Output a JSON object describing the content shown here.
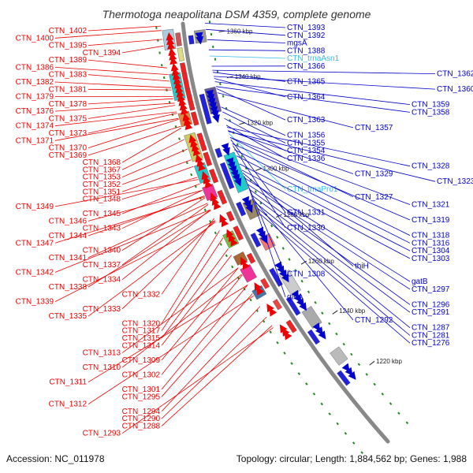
{
  "title": "Thermotoga neapolitana DSM 4359, complete genome",
  "accession": "Accession: NC_011978",
  "summary": "Topology: circular; Length: 1,884,562 bp; Genes: 1,988",
  "colors": {
    "forward": "#ee0000",
    "reverse": "#0000cc",
    "rna": "#33bbee",
    "backbone": "#888888",
    "tick": "#228822"
  },
  "scale_ticks": [
    {
      "label": "1360 kbp",
      "frac": 0.03
    },
    {
      "label": "1340 kbp",
      "frac": 0.145
    },
    {
      "label": "1320 kbp",
      "frac": 0.262
    },
    {
      "label": "1300 kbp",
      "frac": 0.378
    },
    {
      "label": "1280 kbp",
      "frac": 0.495
    },
    {
      "label": "1260 kbp",
      "frac": 0.613
    },
    {
      "label": "1240 kbp",
      "frac": 0.738
    },
    {
      "label": "1220 kbp",
      "frac": 0.866
    }
  ],
  "left_labels": [
    {
      "text": "CTN_1402",
      "row": 1,
      "t": 0.0
    },
    {
      "text": "CTN_1400",
      "row": 0,
      "t": 0.01
    },
    {
      "text": "CTN_1395",
      "row": 1,
      "t": 0.03
    },
    {
      "text": "CTN_1394",
      "row": 2,
      "t": 0.045
    },
    {
      "text": "CTN_1389",
      "row": 1,
      "t": 0.095
    },
    {
      "text": "CTN_1386",
      "row": 0,
      "t": 0.11
    },
    {
      "text": "CTN_1383",
      "row": 1,
      "t": 0.125
    },
    {
      "text": "CTN_1382",
      "row": 0,
      "t": 0.14
    },
    {
      "text": "CTN_1381",
      "row": 1,
      "t": 0.145
    },
    {
      "text": "CTN_1379",
      "row": 0,
      "t": 0.16
    },
    {
      "text": "CTN_1378",
      "row": 1,
      "t": 0.165
    },
    {
      "text": "CTN_1376",
      "row": 0,
      "t": 0.175
    },
    {
      "text": "CTN_1375",
      "row": 1,
      "t": 0.18
    },
    {
      "text": "CTN_1374",
      "row": 0,
      "t": 0.195
    },
    {
      "text": "CTN_1373",
      "row": 1,
      "t": 0.198
    },
    {
      "text": "CTN_1371",
      "row": 0,
      "t": 0.21
    },
    {
      "text": "CTN_1370",
      "row": 1,
      "t": 0.212
    },
    {
      "text": "CTN_1369",
      "row": 1,
      "t": 0.228
    },
    {
      "text": "CTN_1368",
      "row": 2,
      "t": 0.232
    },
    {
      "text": "CTN_1367",
      "row": 2,
      "t": 0.258
    },
    {
      "text": "CTN_1353",
      "row": 2,
      "t": 0.28
    },
    {
      "text": "CTN_1352",
      "row": 2,
      "t": 0.305
    },
    {
      "text": "CTN_1351",
      "row": 2,
      "t": 0.32
    },
    {
      "text": "CTN_1348",
      "row": 2,
      "t": 0.345
    },
    {
      "text": "CTN_1349",
      "row": 0,
      "t": 0.35
    },
    {
      "text": "CTN_1345",
      "row": 2,
      "t": 0.36
    },
    {
      "text": "CTN_1346",
      "row": 1,
      "t": 0.375
    },
    {
      "text": "CTN_1343",
      "row": 2,
      "t": 0.375
    },
    {
      "text": "CTN_1347",
      "row": 0,
      "t": 0.39
    },
    {
      "text": "CTN_1344",
      "row": 1,
      "t": 0.388
    },
    {
      "text": "CTN_1340",
      "row": 2,
      "t": 0.392
    },
    {
      "text": "CTN_1341",
      "row": 1,
      "t": 0.405
    },
    {
      "text": "CTN_1337",
      "row": 2,
      "t": 0.408
    },
    {
      "text": "CTN_1342",
      "row": 0,
      "t": 0.42
    },
    {
      "text": "CTN_1338",
      "row": 1,
      "t": 0.422
    },
    {
      "text": "CTN_1334",
      "row": 2,
      "t": 0.42
    },
    {
      "text": "CTN_1339",
      "row": 0,
      "t": 0.445
    },
    {
      "text": "CTN_1335",
      "row": 1,
      "t": 0.448
    },
    {
      "text": "CTN_1333",
      "row": 2,
      "t": 0.445
    },
    {
      "text": "CTN_1332",
      "row": 3,
      "t": 0.44
    },
    {
      "text": "CTN_1320",
      "row": 3,
      "t": 0.468
    },
    {
      "text": "CTN_1317",
      "row": 3,
      "t": 0.485
    },
    {
      "text": "CTN_1315",
      "row": 3,
      "t": 0.51
    },
    {
      "text": "CTN_1314",
      "row": 3,
      "t": 0.525
    },
    {
      "text": "CTN_1313",
      "row": 2,
      "t": 0.555
    },
    {
      "text": "CTN_1309",
      "row": 3,
      "t": 0.555
    },
    {
      "text": "CTN_1310",
      "row": 2,
      "t": 0.57
    },
    {
      "text": "CTN_1302",
      "row": 3,
      "t": 0.572
    },
    {
      "text": "CTN_1311",
      "row": 1,
      "t": 0.595
    },
    {
      "text": "CTN_1301",
      "row": 3,
      "t": 0.595
    },
    {
      "text": "CTN_1312",
      "row": 1,
      "t": 0.62
    },
    {
      "text": "CTN_1295",
      "row": 3,
      "t": 0.615
    },
    {
      "text": "CTN_1294",
      "row": 3,
      "t": 0.645
    },
    {
      "text": "CTN_1290",
      "row": 3,
      "t": 0.67
    },
    {
      "text": "CTN_1288",
      "row": 3,
      "t": 0.69
    },
    {
      "text": "CTN_1293",
      "row": 2,
      "t": 0.695
    }
  ],
  "right_labels": [
    {
      "text": "CTN_1393",
      "row": 0,
      "t": 0.005
    },
    {
      "text": "CTN_1392",
      "row": 0,
      "t": 0.02
    },
    {
      "text": "mgsA",
      "row": 0,
      "t": 0.045
    },
    {
      "text": "CTN_1388",
      "row": 0,
      "t": 0.07
    },
    {
      "text": "CTN_trnaAsn1",
      "row": 0,
      "t": 0.085,
      "rna": true
    },
    {
      "text": "CTN_1366",
      "row": 0,
      "t": 0.11
    },
    {
      "text": "CTN_1362",
      "row": 3,
      "t": 0.12
    },
    {
      "text": "CTN_1365",
      "row": 0,
      "t": 0.125
    },
    {
      "text": "CTN_1360",
      "row": 3,
      "t": 0.135
    },
    {
      "text": "CTN_1364",
      "row": 0,
      "t": 0.14
    },
    {
      "text": "CTN_1359",
      "row": 2,
      "t": 0.148
    },
    {
      "text": "CTN_1358",
      "row": 2,
      "t": 0.16
    },
    {
      "text": "CTN_1363",
      "row": 0,
      "t": 0.165
    },
    {
      "text": "CTN_1357",
      "row": 1,
      "t": 0.175
    },
    {
      "text": "CTN_1356",
      "row": 0,
      "t": 0.21
    },
    {
      "text": "CTN_1355",
      "row": 0,
      "t": 0.222
    },
    {
      "text": "CTN_1354",
      "row": 0,
      "t": 0.238
    },
    {
      "text": "CTN_1336",
      "row": 0,
      "t": 0.255
    },
    {
      "text": "CTN_1328",
      "row": 2,
      "t": 0.26
    },
    {
      "text": "CTN_1329",
      "row": 1,
      "t": 0.268
    },
    {
      "text": "CTN_1323",
      "row": 3,
      "t": 0.27
    },
    {
      "text": "CTN_trnaPro1",
      "row": 0,
      "t": 0.275,
      "rna": true
    },
    {
      "text": "CTN_1327",
      "row": 1,
      "t": 0.285
    },
    {
      "text": "CTN_1321",
      "row": 2,
      "t": 0.285
    },
    {
      "text": "CTN_1331",
      "row": 0,
      "t": 0.29
    },
    {
      "text": "CTN_1319",
      "row": 2,
      "t": 0.3
    },
    {
      "text": "CTN_1330",
      "row": 0,
      "t": 0.305
    },
    {
      "text": "CTN_1318",
      "row": 2,
      "t": 0.315
    },
    {
      "text": "CTN_1316",
      "row": 2,
      "t": 0.33
    },
    {
      "text": "CTN_1304",
      "row": 2,
      "t": 0.35
    },
    {
      "text": "CTN_1303",
      "row": 2,
      "t": 0.365
    },
    {
      "text": "thiH",
      "row": 1,
      "t": 0.372
    },
    {
      "text": "CTN_1308",
      "row": 0,
      "t": 0.38
    },
    {
      "text": "gatB",
      "row": 2,
      "t": 0.385
    },
    {
      "text": "CTN_1297",
      "row": 2,
      "t": 0.4
    },
    {
      "text": "gatA",
      "row": 0,
      "t": 0.41
    },
    {
      "text": "CTN_1296",
      "row": 2,
      "t": 0.413
    },
    {
      "text": "CTN_1291",
      "row": 2,
      "t": 0.428
    },
    {
      "text": "CTN_1292",
      "row": 1,
      "t": 0.44
    },
    {
      "text": "CTN_1287",
      "row": 2,
      "t": 0.445
    },
    {
      "text": "CTN_1281",
      "row": 2,
      "t": 0.46
    },
    {
      "text": "CTN_1276",
      "row": 2,
      "t": 0.475
    }
  ],
  "forward_features": [
    {
      "t": 0.02,
      "len": 0.03,
      "color": "#cc5555"
    },
    {
      "t": 0.055,
      "len": 0.03,
      "color": "#dddd88"
    },
    {
      "t": 0.09,
      "len": 0.06,
      "color": "#ee2222"
    },
    {
      "t": 0.15,
      "len": 0.05,
      "color": "#ee2222"
    },
    {
      "t": 0.205,
      "len": 0.03,
      "color": "#ee2222"
    },
    {
      "t": 0.255,
      "len": 0.04,
      "color": "#ee2222"
    },
    {
      "t": 0.3,
      "len": 0.03,
      "color": "#ee2222"
    },
    {
      "t": 0.34,
      "len": 0.03,
      "color": "#ee2222"
    },
    {
      "t": 0.39,
      "len": 0.03,
      "color": "#ee2222"
    },
    {
      "t": 0.44,
      "len": 0.02,
      "color": "#ee2222"
    },
    {
      "t": 0.475,
      "len": 0.03,
      "color": "#ee2222"
    },
    {
      "t": 0.54,
      "len": 0.02,
      "color": "#ee2222"
    },
    {
      "t": 0.6,
      "len": 0.02,
      "color": "#ee3333"
    },
    {
      "t": 0.65,
      "len": 0.02,
      "color": "#ee4444"
    },
    {
      "t": 0.7,
      "len": 0.025,
      "color": "#ee2222"
    }
  ],
  "reverse_features": [
    {
      "t": 0.03,
      "len": 0.02,
      "color": "#2222dd"
    },
    {
      "t": 0.17,
      "len": 0.07,
      "color": "#2222dd"
    },
    {
      "t": 0.3,
      "len": 0.02,
      "color": "#2222dd"
    },
    {
      "t": 0.335,
      "len": 0.06,
      "color": "#2222dd"
    },
    {
      "t": 0.43,
      "len": 0.03,
      "color": "#2222dd"
    },
    {
      "t": 0.505,
      "len": 0.03,
      "color": "#2222dd"
    },
    {
      "t": 0.59,
      "len": 0.04,
      "color": "#2222dd"
    },
    {
      "t": 0.66,
      "len": 0.04,
      "color": "#2222dd"
    },
    {
      "t": 0.74,
      "len": 0.03,
      "color": "#2222dd"
    },
    {
      "t": 0.84,
      "len": 0.03,
      "color": "#2222dd"
    }
  ],
  "forward_annotations": [
    {
      "t": 0.01,
      "len": 0.045,
      "color": "#aaccdd"
    },
    {
      "t": 0.11,
      "len": 0.06,
      "color": "#22cccc"
    },
    {
      "t": 0.2,
      "len": 0.03,
      "color": "#dd8844"
    },
    {
      "t": 0.25,
      "len": 0.06,
      "color": "#cccc66"
    },
    {
      "t": 0.32,
      "len": 0.04,
      "color": "#22cccc"
    },
    {
      "t": 0.37,
      "len": 0.03,
      "color": "#ee3399"
    },
    {
      "t": 0.48,
      "len": 0.03,
      "color": "#77bb44"
    },
    {
      "t": 0.53,
      "len": 0.02,
      "color": "#aa6633"
    },
    {
      "t": 0.56,
      "len": 0.03,
      "color": "#ee3399"
    },
    {
      "t": 0.61,
      "len": 0.02,
      "color": "#4477aa"
    }
  ],
  "reverse_annotations": [
    {
      "t": 0.02,
      "len": 0.03,
      "color": "#999999"
    },
    {
      "t": 0.16,
      "len": 0.06,
      "color": "#665599"
    },
    {
      "t": 0.32,
      "len": 0.09,
      "color": "#22cccc"
    },
    {
      "t": 0.435,
      "len": 0.04,
      "color": "#998866"
    },
    {
      "t": 0.52,
      "len": 0.03,
      "color": "#ee7777"
    },
    {
      "t": 0.61,
      "len": 0.05,
      "color": "#cccccc"
    },
    {
      "t": 0.7,
      "len": 0.04,
      "color": "#aaaaaa"
    },
    {
      "t": 0.8,
      "len": 0.03,
      "color": "#bbbbbb"
    }
  ]
}
